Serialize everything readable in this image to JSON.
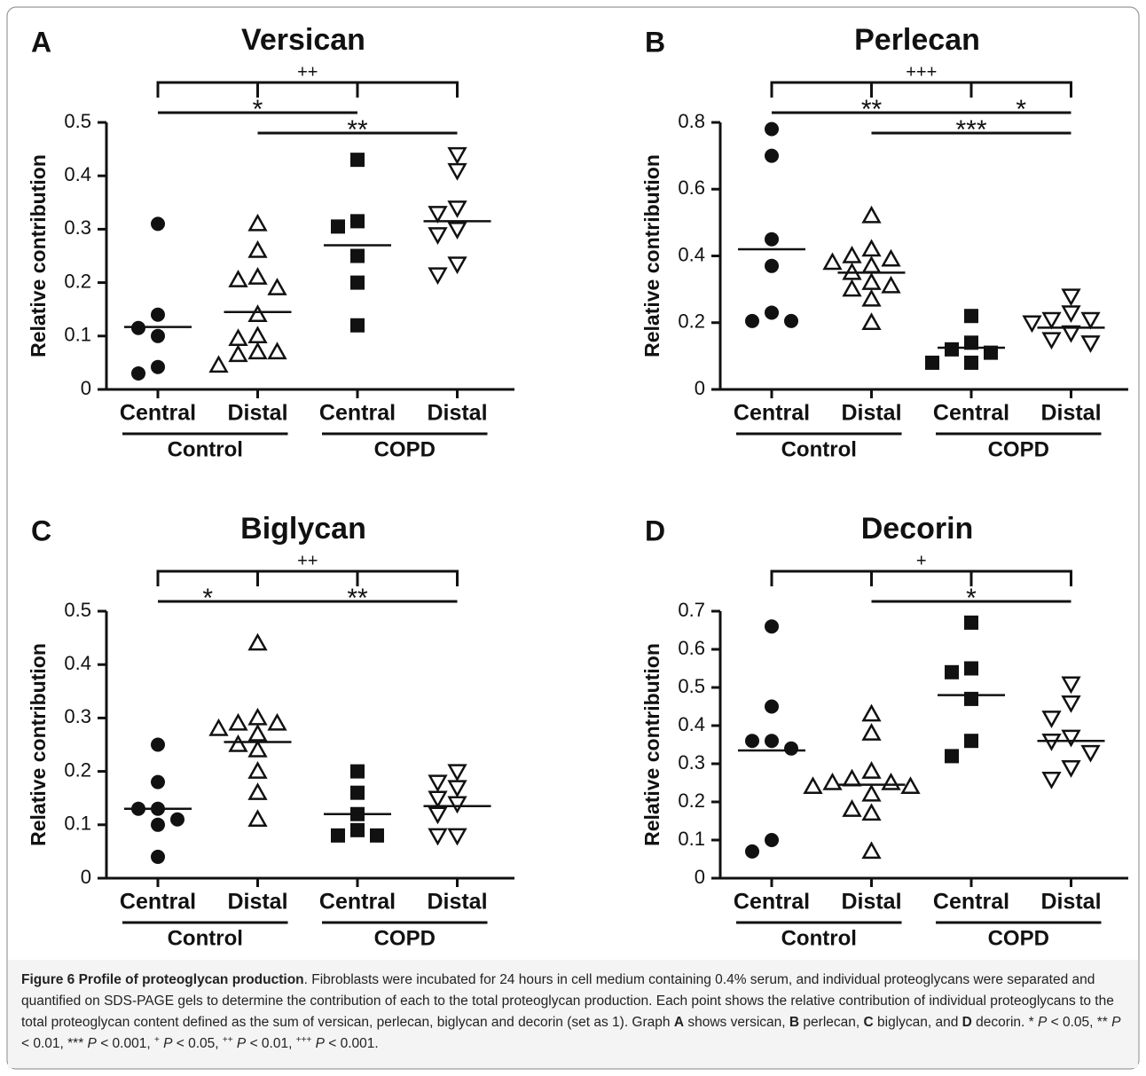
{
  "chart_data": [
    {
      "type": "dot",
      "panel": "A",
      "title": "Versican",
      "y_label": "Relative contribution",
      "categories": [
        "Central",
        "Distal",
        "Central",
        "Distal"
      ],
      "groups": [
        "Control",
        "COPD"
      ],
      "markers": [
        "circle",
        "triangle-up-open",
        "square",
        "triangle-down-open"
      ],
      "color": "#111111",
      "points": [
        [
          0.31,
          0.14,
          0.115,
          0.1,
          0.042,
          0.03
        ],
        [
          0.31,
          0.26,
          0.21,
          0.205,
          0.19,
          0.14,
          0.1,
          0.095,
          0.07,
          0.07,
          0.065,
          0.045
        ],
        [
          0.43,
          0.315,
          0.305,
          0.25,
          0.2,
          0.12
        ],
        [
          0.44,
          0.41,
          0.34,
          0.33,
          0.3,
          0.29,
          0.235,
          0.215
        ]
      ],
      "means": [
        0.117,
        0.145,
        0.27,
        0.315
      ],
      "ylim": [
        0,
        0.5
      ],
      "yticks": [
        0,
        0.1,
        0.2,
        0.3,
        0.4,
        0.5
      ],
      "brackets": [
        {
          "label": "++",
          "from": 0,
          "to": 3
        },
        {
          "label": "*",
          "from": 0,
          "to": 2
        },
        {
          "label": "**",
          "from": 1,
          "to": 3
        }
      ]
    },
    {
      "type": "dot",
      "panel": "B",
      "title": "Perlecan",
      "y_label": "Relative contribution",
      "categories": [
        "Central",
        "Distal",
        "Central",
        "Distal"
      ],
      "groups": [
        "Control",
        "COPD"
      ],
      "markers": [
        "circle",
        "triangle-up-open",
        "square",
        "triangle-down-open"
      ],
      "color": "#111111",
      "points": [
        [
          0.78,
          0.7,
          0.45,
          0.37,
          0.23,
          0.205,
          0.205
        ],
        [
          0.52,
          0.42,
          0.4,
          0.39,
          0.38,
          0.37,
          0.35,
          0.32,
          0.31,
          0.3,
          0.27,
          0.2
        ],
        [
          0.22,
          0.14,
          0.12,
          0.11,
          0.08,
          0.08
        ],
        [
          0.28,
          0.23,
          0.21,
          0.21,
          0.2,
          0.17,
          0.15,
          0.14
        ]
      ],
      "means": [
        0.42,
        0.35,
        0.125,
        0.185
      ],
      "ylim": [
        0,
        0.8
      ],
      "yticks": [
        0,
        0.2,
        0.4,
        0.6,
        0.8
      ],
      "brackets": [
        {
          "label": "+++",
          "from": 0,
          "to": 3
        },
        {
          "label": "**",
          "from": 0,
          "to": 2
        },
        {
          "label": "***",
          "from": 1,
          "to": 3
        },
        {
          "label": "*",
          "from": 2,
          "to": 3
        }
      ]
    },
    {
      "type": "dot",
      "panel": "C",
      "title": "Biglycan",
      "y_label": "Relative contribution",
      "categories": [
        "Central",
        "Distal",
        "Central",
        "Distal"
      ],
      "groups": [
        "Control",
        "COPD"
      ],
      "markers": [
        "circle",
        "triangle-up-open",
        "square",
        "triangle-down-open"
      ],
      "color": "#111111",
      "points": [
        [
          0.25,
          0.18,
          0.13,
          0.13,
          0.11,
          0.1,
          0.04
        ],
        [
          0.44,
          0.3,
          0.29,
          0.29,
          0.28,
          0.27,
          0.25,
          0.24,
          0.2,
          0.16,
          0.11
        ],
        [
          0.2,
          0.16,
          0.12,
          0.09,
          0.08,
          0.08
        ],
        [
          0.2,
          0.18,
          0.17,
          0.15,
          0.14,
          0.12,
          0.08,
          0.08
        ]
      ],
      "means": [
        0.13,
        0.255,
        0.12,
        0.135
      ],
      "ylim": [
        0,
        0.5
      ],
      "yticks": [
        0,
        0.1,
        0.2,
        0.3,
        0.4,
        0.5
      ],
      "brackets": [
        {
          "label": "++",
          "from": 0,
          "to": 3
        },
        {
          "label": "*",
          "from": 0,
          "to": 1
        },
        {
          "label": "**",
          "from": 1,
          "to": 3
        }
      ]
    },
    {
      "type": "dot",
      "panel": "D",
      "title": "Decorin",
      "y_label": "Relative contribution",
      "categories": [
        "Central",
        "Distal",
        "Central",
        "Distal"
      ],
      "groups": [
        "Control",
        "COPD"
      ],
      "markers": [
        "circle",
        "triangle-up-open",
        "square",
        "triangle-down-open"
      ],
      "color": "#111111",
      "points": [
        [
          0.66,
          0.45,
          0.36,
          0.36,
          0.34,
          0.1,
          0.07
        ],
        [
          0.43,
          0.38,
          0.28,
          0.26,
          0.25,
          0.25,
          0.24,
          0.24,
          0.22,
          0.18,
          0.17,
          0.07
        ],
        [
          0.67,
          0.55,
          0.54,
          0.47,
          0.36,
          0.32
        ],
        [
          0.51,
          0.46,
          0.42,
          0.37,
          0.36,
          0.33,
          0.29,
          0.26
        ]
      ],
      "means": [
        0.335,
        0.245,
        0.48,
        0.36
      ],
      "ylim": [
        0,
        0.7
      ],
      "yticks": [
        0,
        0.1,
        0.2,
        0.3,
        0.4,
        0.5,
        0.6,
        0.7
      ],
      "brackets": [
        {
          "label": "+",
          "from": 0,
          "to": 3
        },
        {
          "label": "*",
          "from": 1,
          "to": 3
        }
      ]
    }
  ],
  "caption": {
    "parts": [
      {
        "text": "Figure 6 Profile of proteoglycan production",
        "style": "bold"
      },
      {
        "text": ". Fibroblasts were incubated for 24 hours in cell medium containing 0.4% serum, and individual proteoglycans were separated and quantified on SDS-PAGE gels to determine the contribution of each to the total proteoglycan production. Each point shows the relative contribution of individual proteoglycans to the total proteoglycan content defined as the sum of versican, perlecan, biglycan and decorin (set as 1). Graph ",
        "style": "normal"
      },
      {
        "text": "A",
        "style": "bold"
      },
      {
        "text": " shows versican, ",
        "style": "normal"
      },
      {
        "text": "B",
        "style": "bold"
      },
      {
        "text": " perlecan, ",
        "style": "normal"
      },
      {
        "text": "C",
        "style": "bold"
      },
      {
        "text": " biglycan, and ",
        "style": "normal"
      },
      {
        "text": "D",
        "style": "bold"
      },
      {
        "text": " decorin. * ",
        "style": "normal"
      },
      {
        "text": "P",
        "style": "italic"
      },
      {
        "text": " < 0.05, ** ",
        "style": "normal"
      },
      {
        "text": "P",
        "style": "italic"
      },
      {
        "text": " < 0.01, *** ",
        "style": "normal"
      },
      {
        "text": "P",
        "style": "italic"
      },
      {
        "text": " < 0.001, ",
        "style": "normal"
      },
      {
        "text": "+",
        "style": "sup"
      },
      {
        "text": " ",
        "style": "normal"
      },
      {
        "text": "P",
        "style": "italic"
      },
      {
        "text": " < 0.05, ",
        "style": "normal"
      },
      {
        "text": "++",
        "style": "sup"
      },
      {
        "text": " ",
        "style": "normal"
      },
      {
        "text": "P",
        "style": "italic"
      },
      {
        "text": " < 0.01, ",
        "style": "normal"
      },
      {
        "text": "+++",
        "style": "sup"
      },
      {
        "text": " ",
        "style": "normal"
      },
      {
        "text": "P",
        "style": "italic"
      },
      {
        "text": " < 0.001.",
        "style": "normal"
      }
    ]
  }
}
